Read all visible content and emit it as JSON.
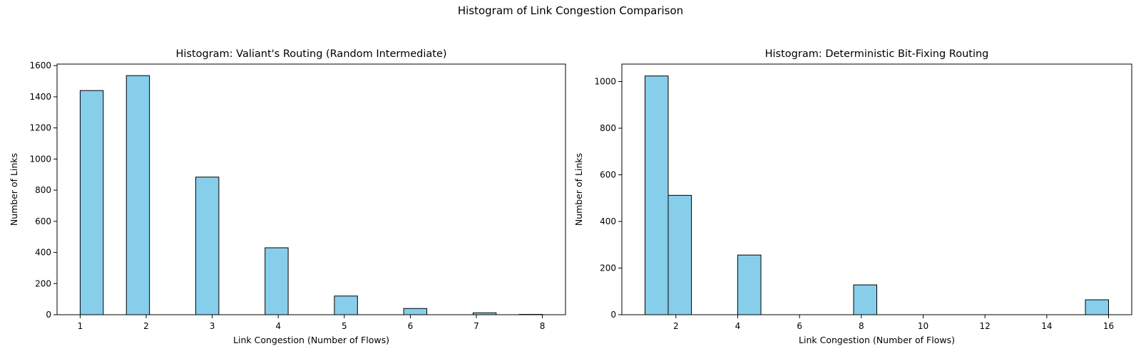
{
  "figure": {
    "suptitle": "Histogram of Link Congestion Comparison"
  },
  "colors": {
    "bar_fill": "#87ceeb",
    "bar_edge": "#000000"
  },
  "chart_data": [
    {
      "type": "bar",
      "title": "Histogram: Valiant's Routing (Random Intermediate)",
      "xlabel": "Link Congestion (Number of Flows)",
      "ylabel": "Number of Links",
      "xlim": [
        0.65,
        8.35
      ],
      "ylim": [
        0,
        1610
      ],
      "xticks": [
        1,
        2,
        3,
        4,
        5,
        6,
        7,
        8
      ],
      "yticks": [
        0,
        200,
        400,
        600,
        800,
        1000,
        1200,
        1400,
        1600
      ],
      "grid": false,
      "bins": [
        {
          "x0": 1.0,
          "x1": 1.35,
          "count": 1440
        },
        {
          "x0": 1.7,
          "x1": 2.05,
          "count": 1536
        },
        {
          "x0": 2.75,
          "x1": 3.1,
          "count": 884
        },
        {
          "x0": 3.8,
          "x1": 4.15,
          "count": 430
        },
        {
          "x0": 4.85,
          "x1": 5.2,
          "count": 120
        },
        {
          "x0": 5.9,
          "x1": 6.25,
          "count": 40
        },
        {
          "x0": 6.95,
          "x1": 7.3,
          "count": 12
        },
        {
          "x0": 7.65,
          "x1": 8.0,
          "count": 2
        }
      ]
    },
    {
      "type": "bar",
      "title": "Histogram: Deterministic Bit-Fixing Routing",
      "xlabel": "Link Congestion (Number of Flows)",
      "ylabel": "Number of Links",
      "xlim": [
        0.25,
        16.75
      ],
      "ylim": [
        0,
        1075
      ],
      "xticks": [
        2,
        4,
        6,
        8,
        10,
        12,
        14,
        16
      ],
      "yticks": [
        0,
        200,
        400,
        600,
        800,
        1000
      ],
      "grid": false,
      "bins": [
        {
          "x0": 1.0,
          "x1": 1.75,
          "count": 1024
        },
        {
          "x0": 1.75,
          "x1": 2.5,
          "count": 512
        },
        {
          "x0": 4.0,
          "x1": 4.75,
          "count": 256
        },
        {
          "x0": 7.75,
          "x1": 8.5,
          "count": 128
        },
        {
          "x0": 15.25,
          "x1": 16.0,
          "count": 64
        }
      ]
    }
  ]
}
